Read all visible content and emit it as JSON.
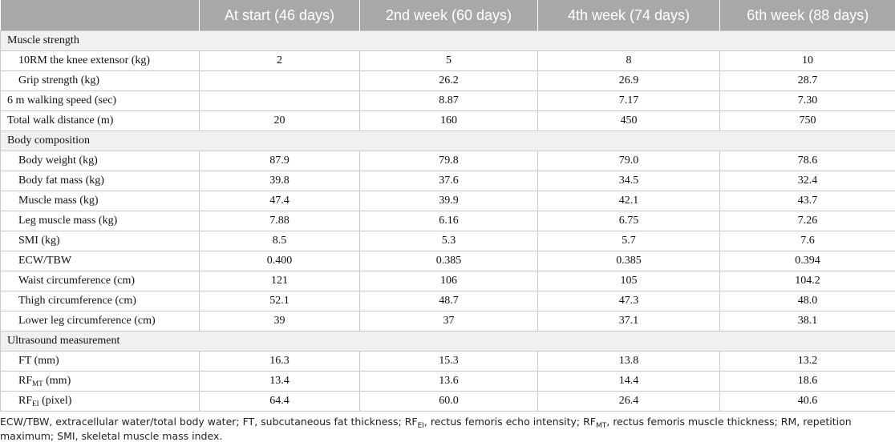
{
  "headers": [
    "",
    "At start (46 days)",
    "2nd week (60 days)",
    "4th week (74 days)",
    "6th week (88 days)"
  ],
  "sections": [
    {
      "title": "Muscle strength",
      "rows": [
        {
          "label": "10RM the knee extensor (kg)",
          "values": [
            "2",
            "5",
            "8",
            "10"
          ]
        },
        {
          "label": "Grip strength (kg)",
          "values": [
            "",
            "26.2",
            "26.9",
            "28.7"
          ]
        },
        {
          "label": "6 m walking speed (sec)",
          "values": [
            "",
            "8.87",
            "7.17",
            "7.30"
          ]
        },
        {
          "label": "Total walk distance (m)",
          "values": [
            "20",
            "160",
            "450",
            "750"
          ]
        }
      ]
    },
    {
      "title": "Body composition",
      "rows": [
        {
          "label": "Body weight (kg)",
          "values": [
            "87.9",
            "79.8",
            "79.0",
            "78.6"
          ]
        },
        {
          "label": "Body fat mass (kg)",
          "values": [
            "39.8",
            "37.6",
            "34.5",
            "32.4"
          ]
        },
        {
          "label": "Muscle mass (kg)",
          "values": [
            "47.4",
            "39.9",
            "42.1",
            "43.7"
          ]
        },
        {
          "label": "Leg muscle mass (kg)",
          "values": [
            "7.88",
            "6.16",
            "6.75",
            "7.26"
          ]
        },
        {
          "label": "SMI (kg)",
          "values": [
            "8.5",
            "5.3",
            "5.7",
            "7.6"
          ]
        },
        {
          "label": "ECW/TBW",
          "values": [
            "0.400",
            "0.385",
            "0.385",
            "0.394"
          ]
        },
        {
          "label": "Waist circumference (cm)",
          "values": [
            "121",
            "106",
            "105",
            "104.2"
          ]
        },
        {
          "label": "Thigh circumference (cm)",
          "values": [
            "52.1",
            "48.7",
            "47.3",
            "48.0"
          ]
        },
        {
          "label": "Lower leg circumference (cm)",
          "values": [
            "39",
            "37",
            "37.1",
            "38.1"
          ]
        }
      ]
    },
    {
      "title": "Ultrasound measurement",
      "rows": [
        {
          "label": "FT (mm)",
          "values": [
            "16.3",
            "15.3",
            "13.8",
            "13.2"
          ]
        },
        {
          "label": "RF",
          "label_sub": "MT",
          "label_suffix": " (mm)",
          "values": [
            "13.4",
            "13.6",
            "14.4",
            "18.6"
          ]
        },
        {
          "label": "RF",
          "label_sub": "EI",
          "label_suffix": " (pixel)",
          "values": [
            "64.4",
            "60.0",
            "26.4",
            "40.6"
          ]
        }
      ]
    }
  ],
  "footnote": {
    "t1": "ECW/TBW, extracellular water/total body water; FT, subcutaneous fat thickness; RF",
    "s1": "EI",
    "t2": ", rectus femoris echo intensity; RF",
    "s2": "MT",
    "t3": ", rectus femoris muscle thickness; RM, repetition maximum; SMI, skeletal muscle mass index."
  }
}
